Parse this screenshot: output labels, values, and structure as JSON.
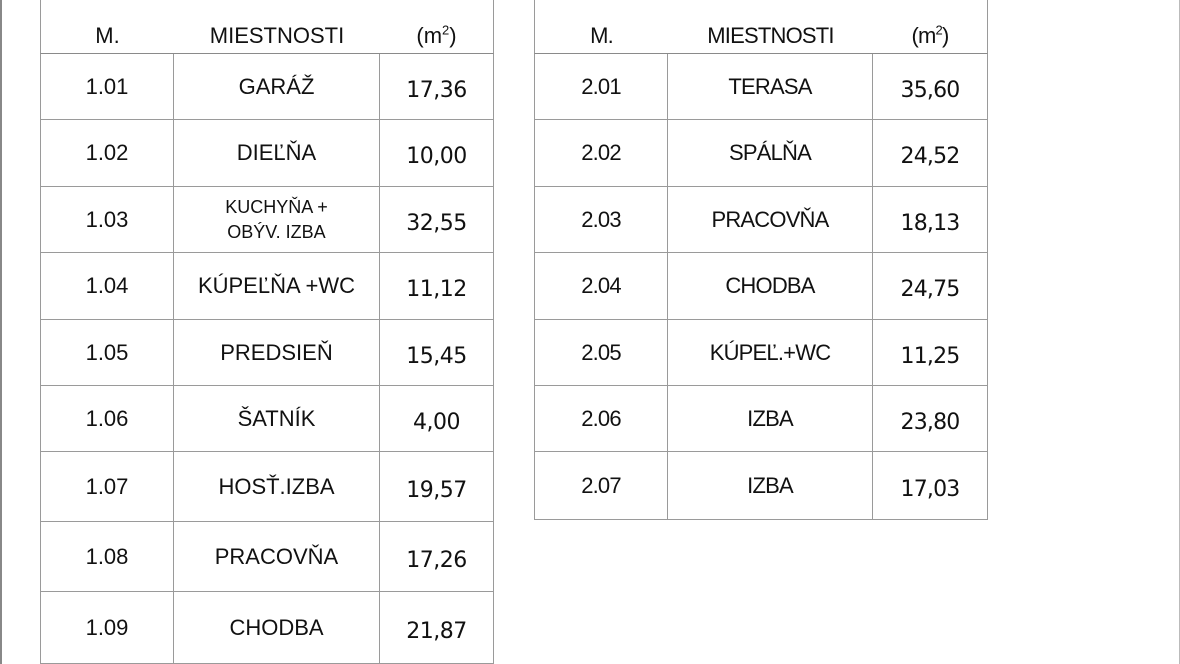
{
  "header": {
    "col_num": "M.",
    "col_room": "MIESTNOSTI",
    "col_area_prefix": "(m",
    "col_area_sup": "2",
    "col_area_suffix": ")"
  },
  "floor1": [
    {
      "num": "1.01",
      "room": "GARÁŽ",
      "area": "17,36"
    },
    {
      "num": "1.02",
      "room": "DIEĽŇA",
      "area": "10,00"
    },
    {
      "num": "1.03",
      "room_line1": "KUCHYŇA +",
      "room_line2": "OBÝV. IZBA",
      "area": "32,55"
    },
    {
      "num": "1.04",
      "room": "KÚPEĽŇA +WC",
      "area": "11,12"
    },
    {
      "num": "1.05",
      "room": "PREDSIEŇ",
      "area": "15,45"
    },
    {
      "num": "1.06",
      "room": "ŠATNÍK",
      "area": "4,00"
    },
    {
      "num": "1.07",
      "room": "HOSŤ.IZBA",
      "area": "19,57"
    },
    {
      "num": "1.08",
      "room": "PRACOVŇA",
      "area": "17,26"
    },
    {
      "num": "1.09",
      "room": "CHODBA",
      "area": "21,87"
    }
  ],
  "floor2": [
    {
      "num": "2.01",
      "room": "TERASA",
      "area": "35,60"
    },
    {
      "num": "2.02",
      "room": "SPÁLŇA",
      "area": "24,52"
    },
    {
      "num": "2.03",
      "room": "PRACOVŇA",
      "area": "18,13"
    },
    {
      "num": "2.04",
      "room": "CHODBA",
      "area": "24,75"
    },
    {
      "num": "2.05",
      "room": "KÚPEĽ.+WC",
      "area": "11,25"
    },
    {
      "num": "2.06",
      "room": "IZBA",
      "area": "23,80"
    },
    {
      "num": "2.07",
      "room": "IZBA",
      "area": "17,03"
    }
  ]
}
